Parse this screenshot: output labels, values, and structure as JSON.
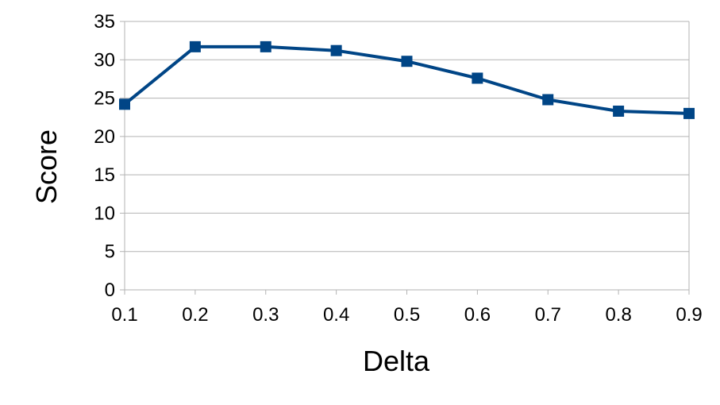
{
  "chart_data": {
    "type": "line",
    "title": "",
    "xlabel": "Delta",
    "ylabel": "Score",
    "x": [
      0.1,
      0.2,
      0.3,
      0.4,
      0.5,
      0.6,
      0.7,
      0.8,
      0.9
    ],
    "x_tick_labels": [
      "0.1",
      "0.2",
      "0.3",
      "0.4",
      "0.5",
      "0.6",
      "0.7",
      "0.8",
      "0.9"
    ],
    "y_ticks": [
      0,
      5,
      10,
      15,
      20,
      25,
      30,
      35
    ],
    "y_tick_labels": [
      "0",
      "5",
      "10",
      "15",
      "20",
      "25",
      "30",
      "35"
    ],
    "ylim": [
      0,
      35
    ],
    "xlim": [
      0.1,
      0.9
    ],
    "grid": "horizontal",
    "legend": "none",
    "series": [
      {
        "values": [
          24.2,
          31.7,
          31.7,
          31.2,
          29.8,
          27.6,
          24.8,
          23.3,
          23.0
        ],
        "color": "#004586",
        "marker": "square"
      }
    ]
  }
}
